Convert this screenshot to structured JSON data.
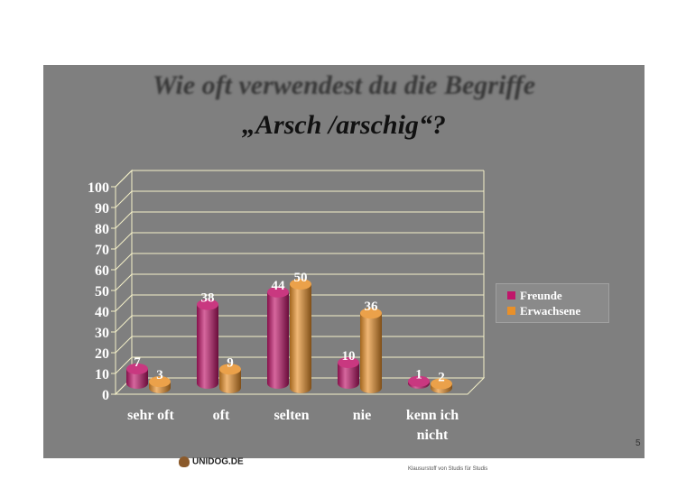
{
  "title": {
    "line1": "Wie oft verwendest du die Begriffe",
    "line2": "„Arsch /arschig“?"
  },
  "colors": {
    "slide_bg": "#7f7f7f",
    "freunde": "#c0156a",
    "erwachsene": "#e8902a",
    "grid": "#f4f0c8"
  },
  "page_number": "5",
  "logo_text": "UNIDOG.DE",
  "logo_icon": "dog-icon",
  "footer_text": "Klausurstoff von Studis für Studis",
  "chart_data": {
    "type": "bar",
    "title": "Wie oft verwendest du die Begriffe „Arsch /arschig“?",
    "categories": [
      "sehr oft",
      "oft",
      "selten",
      "nie",
      "kenn ich nicht"
    ],
    "category_lines": [
      [
        "sehr oft"
      ],
      [
        "oft"
      ],
      [
        "selten"
      ],
      [
        "nie"
      ],
      [
        "kenn ich",
        "nicht"
      ]
    ],
    "series": [
      {
        "name": "Freunde",
        "values": [
          7,
          38,
          44,
          10,
          1
        ]
      },
      {
        "name": "Erwachsene",
        "values": [
          3,
          9,
          50,
          36,
          2
        ]
      }
    ],
    "ylim": [
      0,
      100
    ],
    "yticks": [
      0,
      10,
      20,
      30,
      40,
      50,
      60,
      70,
      80,
      90,
      100
    ],
    "grid": true,
    "legend_position": "right",
    "xlabel": "",
    "ylabel": ""
  }
}
